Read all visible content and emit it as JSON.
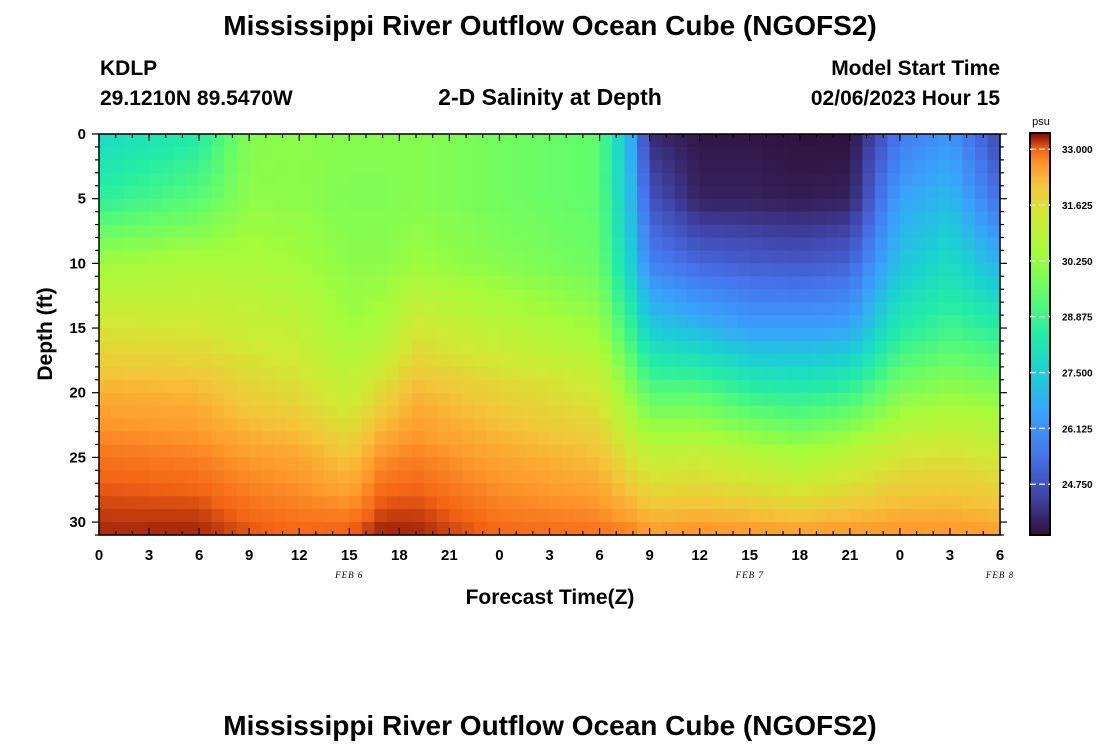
{
  "page": {
    "title": "Mississippi River Outflow Ocean Cube (NGOFS2)",
    "station_id": "KDLP",
    "station_coords": "29.1210N  89.5470W",
    "subtitle": "2-D Salinity at Depth",
    "model_start_label": "Model Start Time",
    "model_start_value": "02/06/2023 Hour 15",
    "footer_title": "Mississippi River Outflow Ocean Cube (NGOFS2)"
  },
  "chart_data": {
    "type": "heatmap",
    "title": "2-D Salinity at Depth",
    "xlabel": "Forecast Time(Z)",
    "ylabel": "Depth (ft)",
    "x_tick_labels": [
      "0",
      "3",
      "6",
      "9",
      "12",
      "15",
      "18",
      "21",
      "0",
      "3",
      "6",
      "9",
      "12",
      "15",
      "18",
      "21",
      "0",
      "3",
      "6"
    ],
    "date_labels": [
      {
        "label": "FEB 6",
        "hour": 15
      },
      {
        "label": "FEB 7",
        "hour": 39
      },
      {
        "label": "FEB 8",
        "hour": 54
      }
    ],
    "x_range_hours": [
      0,
      54
    ],
    "y_ticks": [
      0,
      5,
      10,
      15,
      20,
      25,
      30
    ],
    "y_range_ft": [
      0,
      31
    ],
    "colorbar": {
      "unit": "psu",
      "ticks": [
        "33.000",
        "31.625",
        "30.250",
        "28.875",
        "27.500",
        "26.125",
        "24.750"
      ],
      "range": [
        23.5,
        33.4
      ]
    },
    "salinity_profiles_psu": {
      "depth_ft": [
        0,
        5,
        10,
        15,
        20,
        25,
        30
      ],
      "profiles": [
        {
          "hour": 0,
          "values": [
            27.8,
            28.6,
            30.4,
            31.5,
            32.4,
            32.9,
            33.2
          ]
        },
        {
          "hour": 6,
          "values": [
            28.4,
            29.3,
            30.6,
            31.4,
            32.3,
            32.8,
            33.2
          ]
        },
        {
          "hour": 9,
          "values": [
            30.0,
            30.1,
            30.6,
            31.2,
            31.9,
            32.6,
            33.0
          ]
        },
        {
          "hour": 12,
          "values": [
            30.1,
            30.1,
            30.4,
            31.0,
            31.7,
            32.5,
            32.9
          ]
        },
        {
          "hour": 15,
          "values": [
            30.0,
            29.9,
            30.1,
            30.4,
            31.1,
            32.1,
            32.9
          ]
        },
        {
          "hour": 17,
          "values": [
            30.0,
            29.9,
            30.1,
            30.6,
            31.8,
            32.7,
            33.2
          ]
        },
        {
          "hour": 19,
          "values": [
            30.0,
            30.0,
            30.3,
            31.4,
            32.3,
            32.8,
            33.2
          ]
        },
        {
          "hour": 24,
          "values": [
            29.7,
            29.7,
            30.0,
            30.9,
            31.9,
            32.5,
            32.9
          ]
        },
        {
          "hour": 30,
          "values": [
            29.4,
            29.4,
            29.6,
            30.3,
            31.4,
            32.2,
            32.8
          ]
        },
        {
          "hour": 32,
          "values": [
            26.5,
            26.8,
            27.3,
            28.6,
            30.0,
            31.5,
            32.6
          ]
        },
        {
          "hour": 33,
          "values": [
            24.0,
            24.8,
            25.8,
            27.4,
            29.3,
            31.1,
            32.4
          ]
        },
        {
          "hour": 36,
          "values": [
            23.6,
            23.8,
            25.2,
            26.9,
            29.3,
            31.2,
            32.5
          ]
        },
        {
          "hour": 39,
          "values": [
            23.6,
            23.8,
            25.0,
            26.4,
            28.7,
            30.9,
            32.4
          ]
        },
        {
          "hour": 42,
          "values": [
            23.5,
            23.7,
            24.9,
            26.4,
            28.5,
            30.6,
            32.3
          ]
        },
        {
          "hour": 45,
          "values": [
            23.5,
            23.8,
            25.1,
            26.5,
            28.8,
            31.0,
            32.4
          ]
        },
        {
          "hour": 48,
          "values": [
            25.6,
            26.5,
            27.2,
            28.4,
            29.9,
            31.5,
            32.5
          ]
        },
        {
          "hour": 51,
          "values": [
            26.2,
            27.0,
            27.9,
            28.9,
            30.2,
            31.6,
            32.5
          ]
        },
        {
          "hour": 54,
          "values": [
            24.5,
            25.3,
            26.8,
            28.5,
            30.0,
            31.4,
            32.4
          ]
        }
      ]
    }
  }
}
